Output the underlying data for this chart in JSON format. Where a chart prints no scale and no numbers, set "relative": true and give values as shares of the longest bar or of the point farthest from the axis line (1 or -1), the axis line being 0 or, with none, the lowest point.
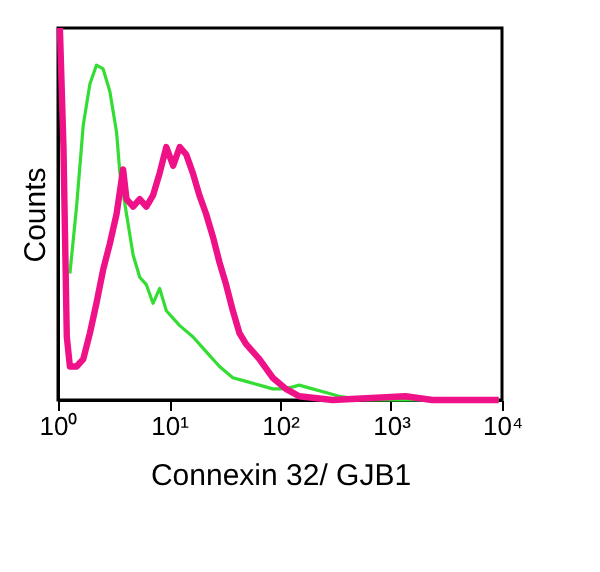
{
  "chart_data": {
    "type": "line",
    "relative": true,
    "xlabel": "Connexin 32/ GJB1",
    "ylabel": "Counts",
    "log": "x",
    "xlim": [
      1,
      10000
    ],
    "xticks": [
      {
        "value": 1,
        "label": "10⁰"
      },
      {
        "value": 10,
        "label": "10¹"
      },
      {
        "value": 100,
        "label": "10²"
      },
      {
        "value": 1000,
        "label": "10³"
      },
      {
        "value": 10000,
        "label": "10⁴"
      }
    ],
    "marker": "none",
    "line_style": "solid",
    "series": [
      {
        "color": "#33dd33",
        "x": [
          1.28,
          1.47,
          1.69,
          1.94,
          2.22,
          2.55,
          2.93,
          3.37,
          3.61,
          4.14,
          4.75,
          5.45,
          6.25,
          7.18,
          8.24,
          9.46,
          12.5,
          16.4,
          21.6,
          28.5,
          37.6,
          49.5,
          65.2,
          85.9,
          113,
          149,
          196,
          259,
          341,
          592,
          2350,
          9330
        ],
        "values": [
          0.34,
          0.52,
          0.74,
          0.85,
          0.9,
          0.89,
          0.83,
          0.72,
          0.61,
          0.5,
          0.39,
          0.33,
          0.31,
          0.26,
          0.3,
          0.24,
          0.2,
          0.17,
          0.13,
          0.09,
          0.06,
          0.05,
          0.04,
          0.03,
          0.03,
          0.04,
          0.03,
          0.02,
          0.01,
          0.0,
          0.0,
          0.0
        ]
      },
      {
        "color": "#ee1188",
        "x": [
          1.04,
          1.12,
          1.2,
          1.28,
          1.47,
          1.69,
          1.94,
          2.22,
          2.55,
          2.93,
          3.37,
          3.86,
          4.14,
          4.75,
          5.45,
          6.25,
          7.18,
          8.24,
          9.46,
          10.9,
          12.5,
          14.3,
          16.4,
          18.8,
          21.6,
          24.8,
          28.5,
          32.7,
          37.6,
          43.1,
          49.5,
          65.2,
          85.9,
          113,
          149,
          297,
          1350,
          2350,
          9330
        ],
        "values": [
          1.0,
          0.68,
          0.17,
          0.09,
          0.09,
          0.11,
          0.18,
          0.26,
          0.35,
          0.42,
          0.5,
          0.62,
          0.54,
          0.52,
          0.54,
          0.52,
          0.55,
          0.61,
          0.68,
          0.63,
          0.68,
          0.66,
          0.61,
          0.55,
          0.5,
          0.44,
          0.37,
          0.31,
          0.24,
          0.18,
          0.15,
          0.11,
          0.06,
          0.03,
          0.01,
          0.0,
          0.01,
          0.0,
          0.0
        ]
      }
    ]
  }
}
